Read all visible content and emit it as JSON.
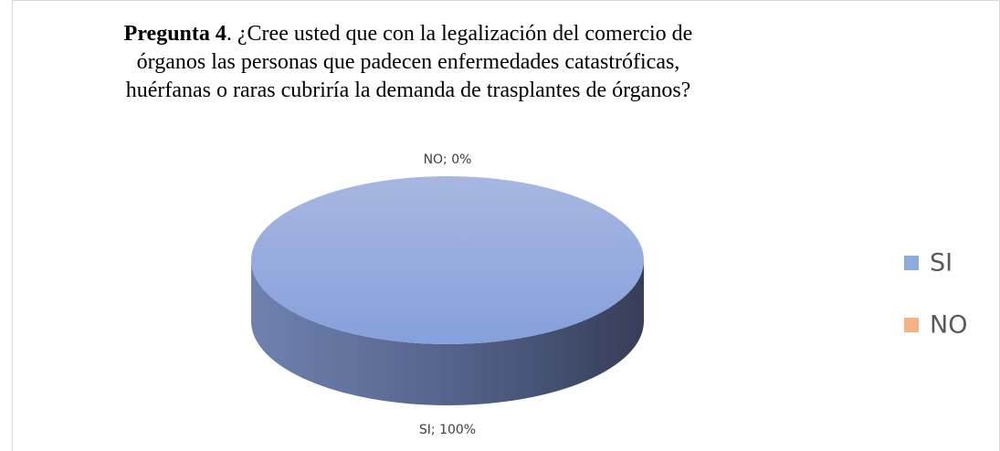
{
  "chart_data": {
    "type": "pie3d",
    "title_bold": "Pregunta 4",
    "title": ". ¿Cree usted que con la legalización del comercio de órganos las personas que padecen enfermedades catastróficas, huérfanas o raras cubriría la demanda de trasplantes de órganos?",
    "categories": [
      "SI",
      "NO"
    ],
    "values": [
      100,
      0
    ],
    "value_labels": [
      "SI; 100%",
      "NO; 0%"
    ],
    "colors": [
      "#8faadc",
      "#f4b183"
    ],
    "legend": "right"
  }
}
